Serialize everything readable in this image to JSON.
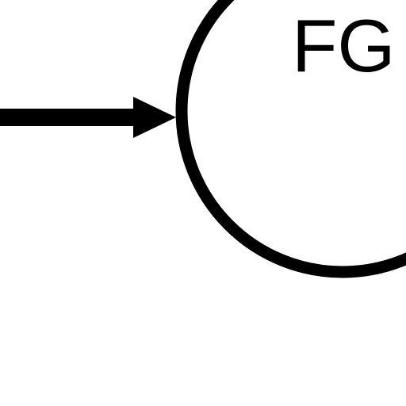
{
  "diagram": {
    "node": {
      "label": "FG"
    },
    "colors": {
      "stroke": "#000000",
      "background": "#ffffff"
    }
  }
}
